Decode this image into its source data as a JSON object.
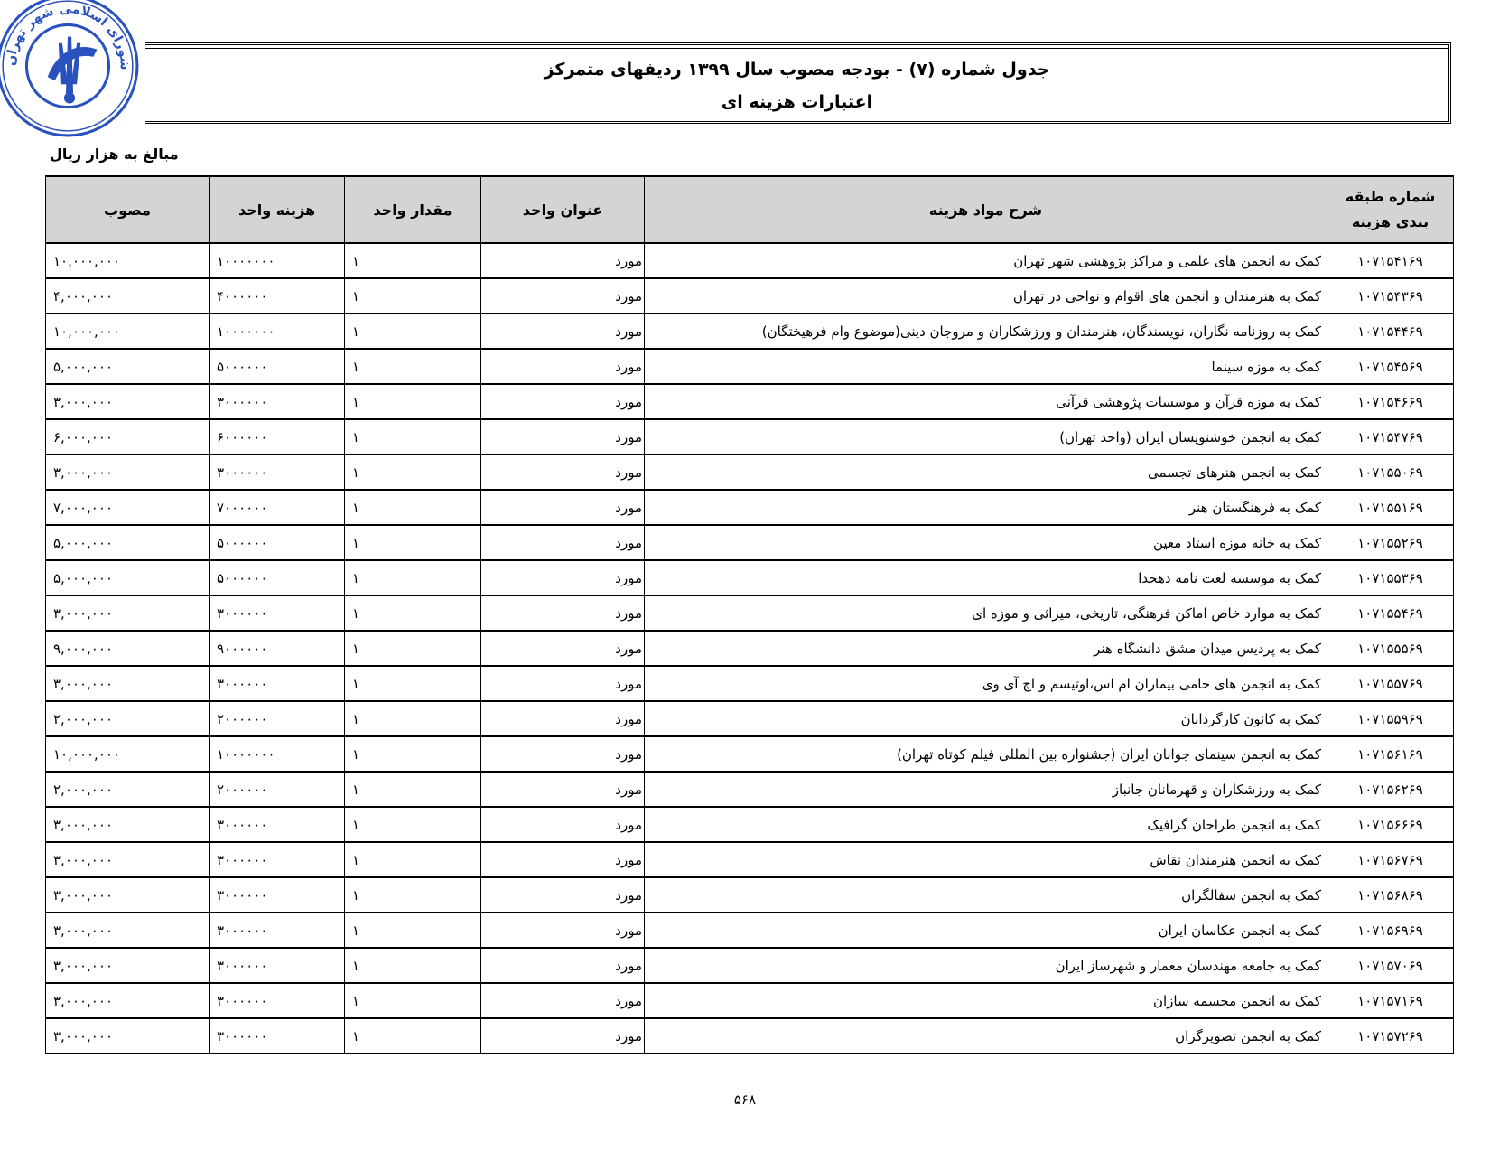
{
  "stamp": {
    "text": "شورای اسلامی شهر تهران",
    "color": "#2a52be"
  },
  "header": {
    "title": "جدول شماره (۷) - بودجه مصوب سال  ۱۳۹۹ ردیفهای متمرکز",
    "subtitle": "اعتبارات هزینه ای"
  },
  "units_note": "مبالغ به هزار ریال",
  "table": {
    "columns": {
      "code": "شماره طبقه بندی هزینه",
      "description": "شرح مواد هزینه",
      "unit_title": "عنوان واحد",
      "unit_qty": "مقدار واحد",
      "unit_cost": "هزینه واحد",
      "approved": "مصوب"
    },
    "rows": [
      {
        "code": "۱۰۷۱۵۴۱۶۹",
        "description": "کمک به انجمن های علمی و مراکز پژوهشی شهر تهران",
        "unit": "مورد",
        "qty": "۱",
        "unit_cost": "۱۰۰۰۰۰۰۰",
        "approved": "۱۰,۰۰۰,۰۰۰"
      },
      {
        "code": "۱۰۷۱۵۴۳۶۹",
        "description": "کمک به هنرمندان و انجمن های اقوام و نواحی در تهران",
        "unit": "مورد",
        "qty": "۱",
        "unit_cost": "۴۰۰۰۰۰۰",
        "approved": "۴,۰۰۰,۰۰۰"
      },
      {
        "code": "۱۰۷۱۵۴۴۶۹",
        "description": "کمک به روزنامه نگاران، نویسندگان، هنرمندان و ورزشکاران و مروجان دینی(موضوع وام فرهیختگان)",
        "unit": "مورد",
        "qty": "۱",
        "unit_cost": "۱۰۰۰۰۰۰۰",
        "approved": "۱۰,۰۰۰,۰۰۰"
      },
      {
        "code": "۱۰۷۱۵۴۵۶۹",
        "description": "کمک به موزه سینما",
        "unit": "مورد",
        "qty": "۱",
        "unit_cost": "۵۰۰۰۰۰۰",
        "approved": "۵,۰۰۰,۰۰۰"
      },
      {
        "code": "۱۰۷۱۵۴۶۶۹",
        "description": "کمک به موزه قرآن و موسسات پژوهشی قرآنی",
        "unit": "مورد",
        "qty": "۱",
        "unit_cost": "۳۰۰۰۰۰۰",
        "approved": "۳,۰۰۰,۰۰۰"
      },
      {
        "code": "۱۰۷۱۵۴۷۶۹",
        "description": "کمک به انجمن خوشنویسان ایران (واحد تهران)",
        "unit": "مورد",
        "qty": "۱",
        "unit_cost": "۶۰۰۰۰۰۰",
        "approved": "۶,۰۰۰,۰۰۰"
      },
      {
        "code": "۱۰۷۱۵۵۰۶۹",
        "description": "کمک به انجمن هنرهای تجسمی",
        "unit": "مورد",
        "qty": "۱",
        "unit_cost": "۳۰۰۰۰۰۰",
        "approved": "۳,۰۰۰,۰۰۰"
      },
      {
        "code": "۱۰۷۱۵۵۱۶۹",
        "description": "کمک به فرهنگستان هنر",
        "unit": "مورد",
        "qty": "۱",
        "unit_cost": "۷۰۰۰۰۰۰",
        "approved": "۷,۰۰۰,۰۰۰"
      },
      {
        "code": "۱۰۷۱۵۵۲۶۹",
        "description": "کمک به خانه موزه استاد معین",
        "unit": "مورد",
        "qty": "۱",
        "unit_cost": "۵۰۰۰۰۰۰",
        "approved": "۵,۰۰۰,۰۰۰"
      },
      {
        "code": "۱۰۷۱۵۵۳۶۹",
        "description": "کمک به موسسه لغت نامه دهخدا",
        "unit": "مورد",
        "qty": "۱",
        "unit_cost": "۵۰۰۰۰۰۰",
        "approved": "۵,۰۰۰,۰۰۰"
      },
      {
        "code": "۱۰۷۱۵۵۴۶۹",
        "description": "کمک به موارد خاص اماکن فرهنگی، تاریخی، میراثی و موزه ای",
        "unit": "مورد",
        "qty": "۱",
        "unit_cost": "۳۰۰۰۰۰۰",
        "approved": "۳,۰۰۰,۰۰۰"
      },
      {
        "code": "۱۰۷۱۵۵۵۶۹",
        "description": "کمک به پردیس میدان مشق دانشگاه هنر",
        "unit": "مورد",
        "qty": "۱",
        "unit_cost": "۹۰۰۰۰۰۰",
        "approved": "۹,۰۰۰,۰۰۰"
      },
      {
        "code": "۱۰۷۱۵۵۷۶۹",
        "description": "کمک به انجمن های حامی بیماران ام اس،اوتیسم و اچ آی وی",
        "unit": "مورد",
        "qty": "۱",
        "unit_cost": "۳۰۰۰۰۰۰",
        "approved": "۳,۰۰۰,۰۰۰"
      },
      {
        "code": "۱۰۷۱۵۵۹۶۹",
        "description": "کمک به کانون کارگردانان",
        "unit": "مورد",
        "qty": "۱",
        "unit_cost": "۲۰۰۰۰۰۰",
        "approved": "۲,۰۰۰,۰۰۰"
      },
      {
        "code": "۱۰۷۱۵۶۱۶۹",
        "description": "کمک به انجمن سینمای جوانان ایران (جشنواره بین المللی فیلم کوتاه تهران)",
        "unit": "مورد",
        "qty": "۱",
        "unit_cost": "۱۰۰۰۰۰۰۰",
        "approved": "۱۰,۰۰۰,۰۰۰"
      },
      {
        "code": "۱۰۷۱۵۶۲۶۹",
        "description": "کمک به ورزشکاران و قهرمانان جانباز",
        "unit": "مورد",
        "qty": "۱",
        "unit_cost": "۲۰۰۰۰۰۰",
        "approved": "۲,۰۰۰,۰۰۰"
      },
      {
        "code": "۱۰۷۱۵۶۶۶۹",
        "description": "کمک به انجمن طراحان گرافیک",
        "unit": "مورد",
        "qty": "۱",
        "unit_cost": "۳۰۰۰۰۰۰",
        "approved": "۳,۰۰۰,۰۰۰"
      },
      {
        "code": "۱۰۷۱۵۶۷۶۹",
        "description": "کمک به انجمن هنرمندان نقاش",
        "unit": "مورد",
        "qty": "۱",
        "unit_cost": "۳۰۰۰۰۰۰",
        "approved": "۳,۰۰۰,۰۰۰"
      },
      {
        "code": "۱۰۷۱۵۶۸۶۹",
        "description": "کمک به انجمن سفالگران",
        "unit": "مورد",
        "qty": "۱",
        "unit_cost": "۳۰۰۰۰۰۰",
        "approved": "۳,۰۰۰,۰۰۰"
      },
      {
        "code": "۱۰۷۱۵۶۹۶۹",
        "description": "کمک به انجمن عکاسان ایران",
        "unit": "مورد",
        "qty": "۱",
        "unit_cost": "۳۰۰۰۰۰۰",
        "approved": "۳,۰۰۰,۰۰۰"
      },
      {
        "code": "۱۰۷۱۵۷۰۶۹",
        "description": "کمک به جامعه مهندسان معمار و شهرساز ایران",
        "unit": "مورد",
        "qty": "۱",
        "unit_cost": "۳۰۰۰۰۰۰",
        "approved": "۳,۰۰۰,۰۰۰"
      },
      {
        "code": "۱۰۷۱۵۷۱۶۹",
        "description": "کمک به انجمن مجسمه سازان",
        "unit": "مورد",
        "qty": "۱",
        "unit_cost": "۳۰۰۰۰۰۰",
        "approved": "۳,۰۰۰,۰۰۰"
      },
      {
        "code": "۱۰۷۱۵۷۲۶۹",
        "description": "کمک به انجمن تصویرگران",
        "unit": "مورد",
        "qty": "۱",
        "unit_cost": "۳۰۰۰۰۰۰",
        "approved": "۳,۰۰۰,۰۰۰"
      }
    ]
  },
  "page_number": "۵۶۸"
}
